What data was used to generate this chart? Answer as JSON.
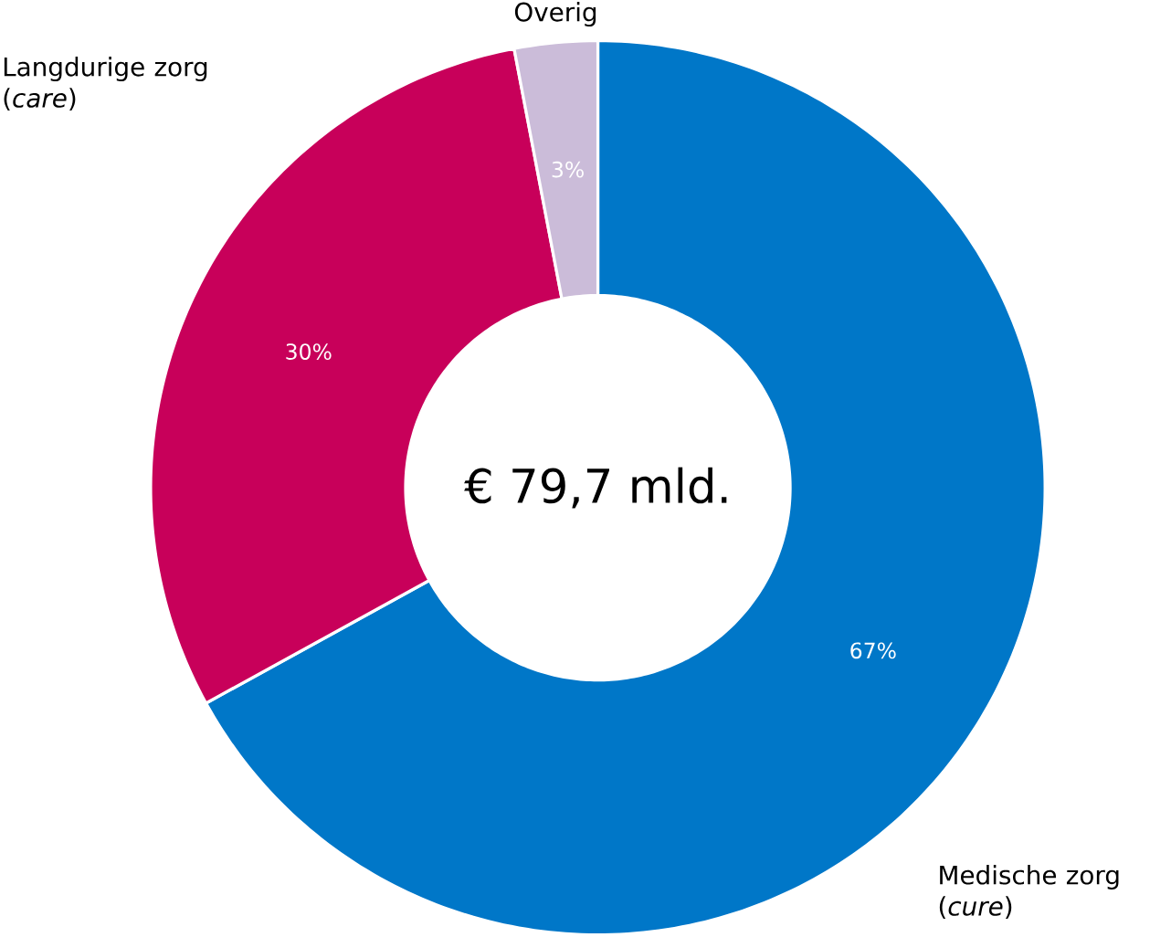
{
  "chart_data": {
    "type": "donut",
    "categories": [
      "Medische zorg (*cure*)",
      "Langdurige zorg (*care*)",
      "Overig"
    ],
    "values": [
      67,
      30,
      3
    ],
    "colors": [
      "#0077c8",
      "#c8005a",
      "#cbbcd9"
    ],
    "value_labels": [
      "67%",
      "30%",
      "3%"
    ],
    "annotations": [
      "€ 79,7 mld."
    ]
  }
}
